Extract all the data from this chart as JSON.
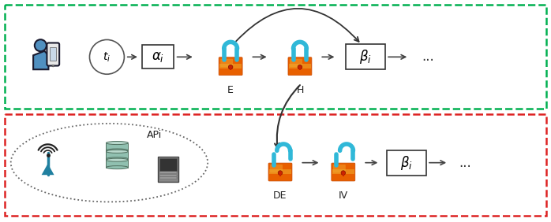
{
  "fig_width": 6.98,
  "fig_height": 2.82,
  "dpi": 100,
  "bg_color": "#ffffff",
  "top_border_color": "#00b050",
  "bottom_border_color": "#dd2222",
  "arrow_color": "#444444",
  "label_E": "E",
  "label_H": "H",
  "label_DE": "DE",
  "label_IV": "IV",
  "label_ti": "$t_i$",
  "label_alphai": "$\\alpha_i$",
  "label_betai_top": "$\\beta_i$",
  "label_betai_bot": "$\\beta_i$",
  "label_APi": "APi",
  "label_dots": "...",
  "lock_orange_dark": "#c84800",
  "lock_orange_mid": "#e86000",
  "lock_orange_light": "#f09020",
  "lock_yellow": "#f0b030",
  "lock_shackle": "#30b8d8",
  "lock_keyhole": "#cc2200",
  "antenna_blue": "#2080a0",
  "db_teal": "#a0d0c0",
  "db_edge": "#507060"
}
